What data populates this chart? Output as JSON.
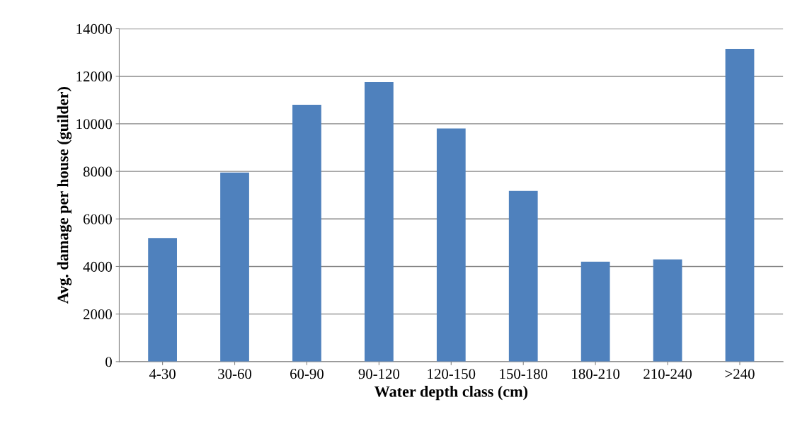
{
  "chart_data": {
    "type": "bar",
    "xlabel": "Water depth class (cm)",
    "ylabel": "Avg. damage per house (guilder)",
    "categories": [
      "4-30",
      "30-60",
      "60-90",
      "90-120",
      "120-150",
      "150-180",
      "180-210",
      "210-240",
      ">240"
    ],
    "values": [
      5200,
      7950,
      10800,
      11750,
      9800,
      7180,
      4200,
      4300,
      13150
    ],
    "color": "#4f81bd",
    "ylim": [
      0,
      14000
    ],
    "yticks": [
      0,
      2000,
      4000,
      6000,
      8000,
      10000,
      12000,
      14000
    ],
    "grid": "y",
    "legend": false
  }
}
